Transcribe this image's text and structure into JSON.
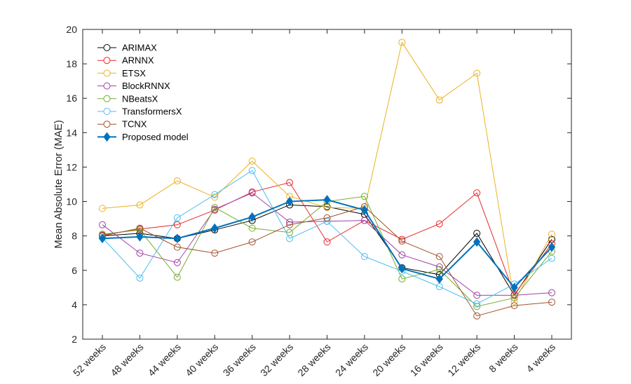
{
  "chart_data": {
    "type": "line",
    "title": "",
    "xlabel": "",
    "ylabel": "Mean Absolute Error (MAE)",
    "ylim": [
      2,
      20
    ],
    "yticks": [
      2,
      4,
      6,
      8,
      10,
      12,
      14,
      16,
      18,
      20
    ],
    "grid": false,
    "legend_position": "top-left",
    "categories": [
      "52 weeks",
      "48 weeks",
      "44 weeks",
      "40 weeks",
      "36 weeks",
      "32 weeks",
      "28 weeks",
      "24 weeks",
      "20 weeks",
      "16 weeks",
      "12 weeks",
      "8 weeks",
      "4 weeks"
    ],
    "series": [
      {
        "name": "ARIMAX",
        "color": "#000000",
        "marker": "circle",
        "values": [
          8.0,
          8.15,
          7.85,
          8.35,
          8.9,
          9.8,
          9.7,
          9.25,
          6.15,
          5.75,
          8.15,
          4.55,
          7.8
        ]
      },
      {
        "name": "ARNNX",
        "color": "#e8262a",
        "marker": "circle",
        "values": [
          8.05,
          8.4,
          8.65,
          9.5,
          10.55,
          11.1,
          7.65,
          8.9,
          7.8,
          8.7,
          10.5,
          4.6,
          7.55
        ]
      },
      {
        "name": "ETSX",
        "color": "#edb120",
        "marker": "circle",
        "values": [
          9.6,
          9.8,
          11.2,
          10.25,
          12.35,
          10.3,
          9.65,
          9.6,
          19.25,
          15.9,
          17.45,
          4.2,
          8.1
        ]
      },
      {
        "name": "BlockRNNX",
        "color": "#a040a8",
        "marker": "circle",
        "values": [
          8.65,
          7.0,
          6.45,
          9.55,
          10.5,
          8.8,
          8.85,
          8.9,
          6.9,
          6.2,
          4.55,
          4.55,
          4.7
        ]
      },
      {
        "name": "NBeatsX",
        "color": "#77ac30",
        "marker": "circle",
        "values": [
          8.1,
          8.35,
          5.6,
          9.65,
          8.45,
          8.2,
          10.0,
          10.3,
          5.5,
          6.05,
          3.9,
          4.4,
          7.1
        ]
      },
      {
        "name": "TransformersX",
        "color": "#4dbeee",
        "marker": "circle",
        "values": [
          7.9,
          5.55,
          9.05,
          10.4,
          11.8,
          7.85,
          8.85,
          6.8,
          5.95,
          5.05,
          4.05,
          5.2,
          6.7
        ]
      },
      {
        "name": "TCNX",
        "color": "#a2522e",
        "marker": "circle",
        "values": [
          8.0,
          8.45,
          7.35,
          7.0,
          7.65,
          8.65,
          9.05,
          9.7,
          7.7,
          6.8,
          3.35,
          3.95,
          4.15
        ]
      },
      {
        "name": "Proposed model",
        "color": "#0072bd",
        "marker": "diamond",
        "values": [
          7.85,
          7.95,
          7.85,
          8.45,
          9.1,
          10.0,
          10.1,
          9.5,
          6.1,
          5.5,
          7.65,
          5.0,
          7.35
        ]
      }
    ]
  }
}
